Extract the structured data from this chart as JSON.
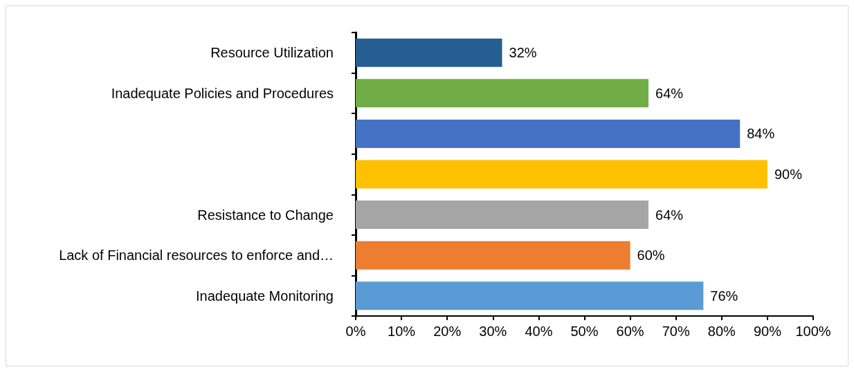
{
  "chart_data": {
    "type": "bar",
    "orientation": "horizontal",
    "categories": [
      "Resource Utilization",
      "Inadequate Policies and Procedures",
      null,
      null,
      "Resistance to Change",
      "Lack of Financial resources to enforce and…",
      "Inadequate Monitoring"
    ],
    "values": [
      32,
      64,
      84,
      90,
      64,
      60,
      76
    ],
    "colors": [
      "#255e91",
      "#70ad47",
      "#4472c4",
      "#ffc000",
      "#a5a5a5",
      "#ed7d31",
      "#5b9bd5"
    ],
    "value_labels": [
      "32%",
      "64%",
      "84%",
      "90%",
      "64%",
      "60%",
      "76%"
    ],
    "xlim": [
      0,
      100
    ],
    "xticks": [
      {
        "value": 0,
        "label": "0%"
      },
      {
        "value": 10,
        "label": "10%"
      },
      {
        "value": 20,
        "label": "20%"
      },
      {
        "value": 30,
        "label": "30%"
      },
      {
        "value": 40,
        "label": "40%"
      },
      {
        "value": 50,
        "label": "50%"
      },
      {
        "value": 60,
        "label": "60%"
      },
      {
        "value": 70,
        "label": "70%"
      },
      {
        "value": 80,
        "label": "80%"
      },
      {
        "value": 90,
        "label": "90%"
      },
      {
        "value": 100,
        "label": "100%"
      }
    ],
    "grid": false
  }
}
